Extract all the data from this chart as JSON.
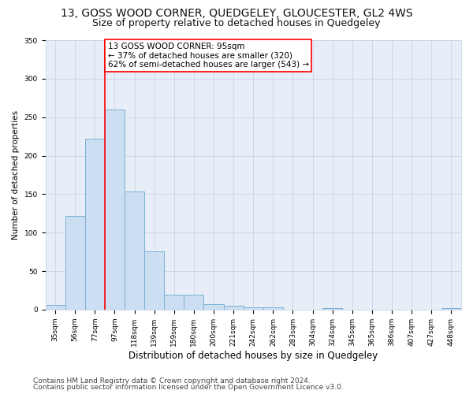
{
  "title": "13, GOSS WOOD CORNER, QUEDGELEY, GLOUCESTER, GL2 4WS",
  "subtitle": "Size of property relative to detached houses in Quedgeley",
  "xlabel": "Distribution of detached houses by size in Quedgeley",
  "ylabel": "Number of detached properties",
  "bar_labels": [
    "35sqm",
    "56sqm",
    "77sqm",
    "97sqm",
    "118sqm",
    "139sqm",
    "159sqm",
    "180sqm",
    "200sqm",
    "221sqm",
    "242sqm",
    "262sqm",
    "283sqm",
    "304sqm",
    "324sqm",
    "345sqm",
    "365sqm",
    "386sqm",
    "407sqm",
    "427sqm",
    "448sqm"
  ],
  "bar_values": [
    6,
    122,
    222,
    260,
    153,
    76,
    19,
    19,
    7,
    5,
    3,
    3,
    0,
    0,
    2,
    0,
    0,
    0,
    0,
    0,
    2
  ],
  "bar_color": "#ccdff2",
  "bar_edge_color": "#7bafd4",
  "vline_color": "red",
  "vline_index": 3,
  "annotation_text": "13 GOSS WOOD CORNER: 95sqm\n← 37% of detached houses are smaller (320)\n62% of semi-detached houses are larger (543) →",
  "annotation_box_color": "white",
  "annotation_box_edge_color": "red",
  "grid_color": "#c8d4e8",
  "bg_color": "#e8eef8",
  "fig_bg_color": "#ffffff",
  "footer_line1": "Contains HM Land Registry data © Crown copyright and database right 2024.",
  "footer_line2": "Contains public sector information licensed under the Open Government Licence v3.0.",
  "ylim": [
    0,
    350
  ],
  "yticks": [
    0,
    50,
    100,
    150,
    200,
    250,
    300,
    350
  ],
  "title_fontsize": 10,
  "subtitle_fontsize": 9,
  "xlabel_fontsize": 8.5,
  "ylabel_fontsize": 7.5,
  "tick_fontsize": 6.5,
  "annotation_fontsize": 7.5,
  "footer_fontsize": 6.5
}
